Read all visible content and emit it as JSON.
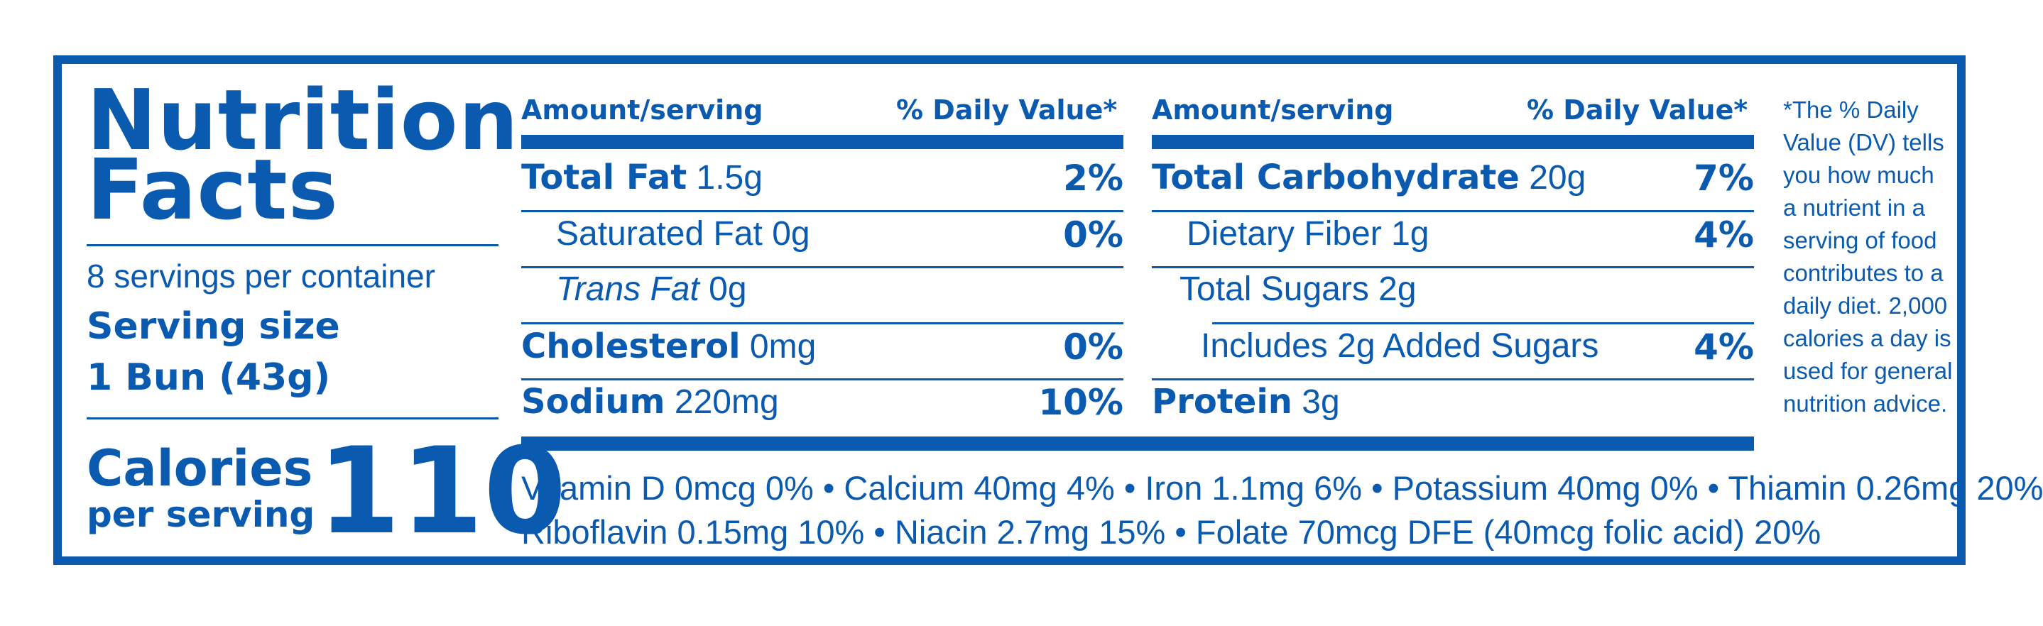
{
  "header": {
    "title_line1": "Nutrition",
    "title_line2": "Facts"
  },
  "serving": {
    "servings_per_container": "8 servings per container",
    "serving_size_label": "Serving size",
    "serving_size_value": "1 Bun (43g)"
  },
  "calories": {
    "label_line1": "Calories",
    "label_line2": "per serving",
    "value": "110"
  },
  "columns": {
    "amount_label": "Amount/serving",
    "dv_label": "% Daily Value*"
  },
  "left_rows": [
    {
      "name": "Total Fat",
      "amount": "1.5g",
      "dv": "2%"
    },
    {
      "name": "Saturated Fat",
      "amount": "0g",
      "dv": "0%"
    },
    {
      "name": "Trans Fat",
      "amount": "0g",
      "dv": ""
    },
    {
      "name": "Cholesterol",
      "amount": "0mg",
      "dv": "0%"
    },
    {
      "name": "Sodium",
      "amount": "220mg",
      "dv": "10%"
    }
  ],
  "right_rows": [
    {
      "name": "Total Carbohydrate",
      "amount": "20g",
      "dv": "7%"
    },
    {
      "name": "Dietary Fiber",
      "amount": "1g",
      "dv": "4%"
    },
    {
      "name": "Total Sugars",
      "amount": "2g",
      "dv": ""
    },
    {
      "name": "Includes 2g Added Sugars",
      "amount": "",
      "dv": "4%"
    },
    {
      "name": "Protein",
      "amount": "3g",
      "dv": ""
    }
  ],
  "vitamins": {
    "line1": "Vitamin D 0mcg 0% • Calcium 40mg 4% • Iron 1.1mg 6% • Potassium 40mg 0% • Thiamin 0.26mg 20%",
    "line2": "Riboflavin 0.15mg 10% • Niacin 2.7mg 15% • Folate 70mcg DFE (40mcg folic acid) 20%"
  },
  "footnote": "*The % Daily Value (DV) tells you how much a nutrient in a serving of food contributes to a daily diet. 2,000 calories a day is used for general nutrition advice."
}
